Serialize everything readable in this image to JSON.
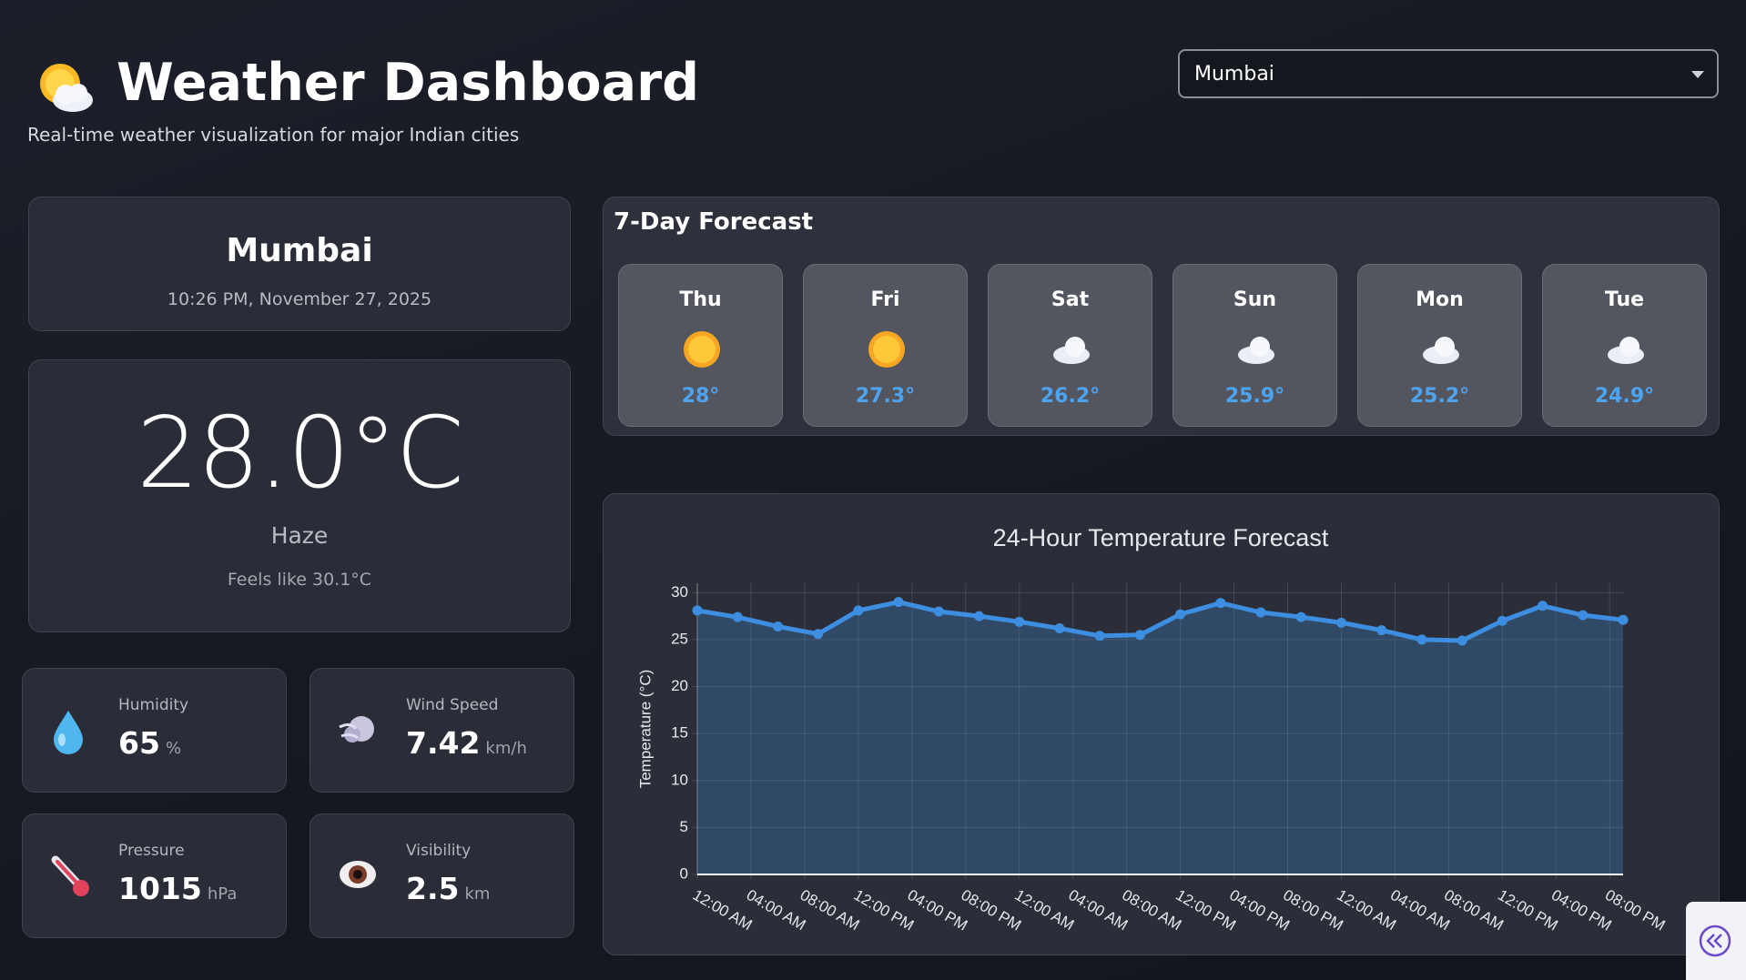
{
  "header": {
    "title": "Weather Dashboard",
    "subtitle": "Real-time weather visualization for major Indian cities"
  },
  "city_select": {
    "value": "Mumbai"
  },
  "current": {
    "city": "Mumbai",
    "datetime": "10:26 PM, November 27, 2025",
    "temperature": "28.0°C",
    "condition": "Haze",
    "feels_like": "Feels like 30.1°C"
  },
  "stats": [
    {
      "label": "Humidity",
      "value": 65,
      "unit": "%"
    },
    {
      "label": "Wind Speed",
      "value": 7.42,
      "unit": "km/h"
    },
    {
      "label": "Pressure",
      "value": 1015,
      "unit": "hPa"
    },
    {
      "label": "Visibility",
      "value": 2.5,
      "unit": "km"
    }
  ],
  "forecast": {
    "title": "7-Day Forecast",
    "days": [
      {
        "day": "Thu",
        "temp": "28°"
      },
      {
        "day": "Fri",
        "temp": "27.3°"
      },
      {
        "day": "Sat",
        "temp": "26.2°"
      },
      {
        "day": "Sun",
        "temp": "25.9°"
      },
      {
        "day": "Mon",
        "temp": "25.2°"
      },
      {
        "day": "Tue",
        "temp": "24.9°"
      }
    ]
  },
  "chart_data": {
    "type": "line",
    "title": "24-Hour Temperature Forecast",
    "y_label": "Temperature (°C)",
    "x": [
      0,
      3,
      6,
      9,
      12,
      15,
      18,
      21,
      24,
      27,
      30,
      33,
      36,
      39,
      42,
      45,
      48,
      51,
      54,
      57,
      60,
      63,
      66,
      69
    ],
    "series": [
      {
        "color": "#3d8ee0",
        "values": [
          28.1,
          27.4,
          26.4,
          25.6,
          28.1,
          29.0,
          28.0,
          27.5,
          26.9,
          26.2,
          25.4,
          25.5,
          27.7,
          28.9,
          27.9,
          27.4,
          26.8,
          26.0,
          25.0,
          24.9,
          27.0,
          28.6,
          27.6,
          27.1
        ]
      }
    ],
    "fill": true,
    "xlim": [
      0,
      69
    ],
    "xticks": [
      {
        "value": 0,
        "label": "12:00 AM"
      },
      {
        "value": 4,
        "label": "04:00 AM"
      },
      {
        "value": 8,
        "label": "08:00 AM"
      },
      {
        "value": 12,
        "label": "12:00 PM"
      },
      {
        "value": 16,
        "label": "04:00 PM"
      },
      {
        "value": 20,
        "label": "08:00 PM"
      },
      {
        "value": 24,
        "label": "12:00 AM"
      },
      {
        "value": 28,
        "label": "04:00 AM"
      },
      {
        "value": 32,
        "label": "08:00 AM"
      },
      {
        "value": 36,
        "label": "12:00 PM"
      },
      {
        "value": 40,
        "label": "04:00 PM"
      },
      {
        "value": 44,
        "label": "08:00 PM"
      },
      {
        "value": 48,
        "label": "12:00 AM"
      },
      {
        "value": 52,
        "label": "04:00 AM"
      },
      {
        "value": 56,
        "label": "08:00 AM"
      },
      {
        "value": 60,
        "label": "12:00 PM"
      },
      {
        "value": 64,
        "label": "04:00 PM"
      },
      {
        "value": 68,
        "label": "08:00 PM"
      }
    ],
    "ylim": [
      0,
      31
    ],
    "yticks": [
      0,
      5,
      10,
      15,
      20,
      25,
      30
    ],
    "grid": true
  }
}
